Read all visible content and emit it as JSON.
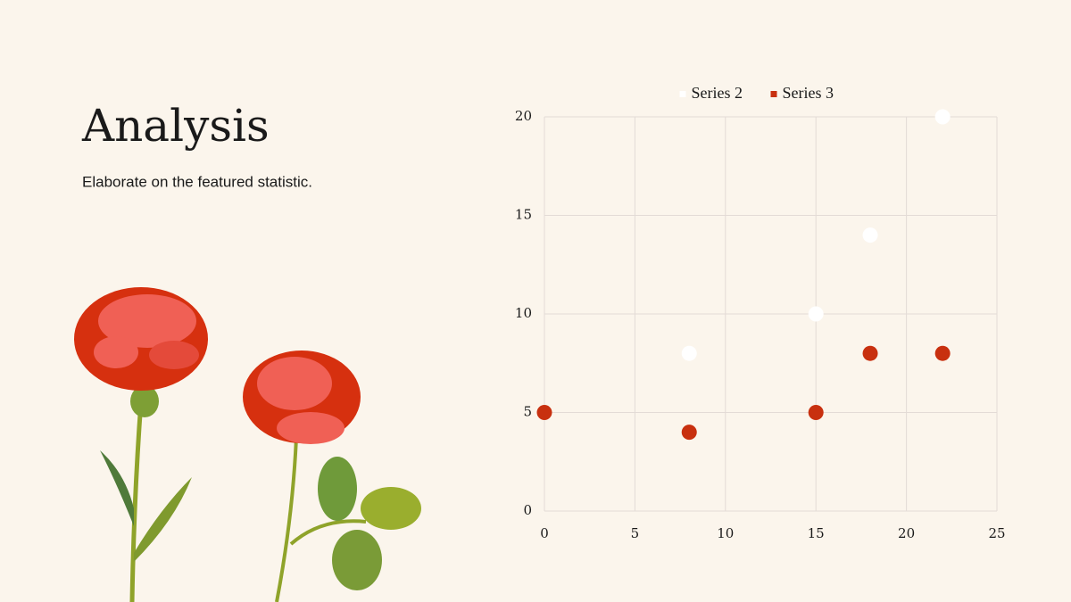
{
  "chart_data": {
    "type": "scatter",
    "title": "Analysis",
    "subtitle": "Elaborate on the featured statistic.",
    "series": [
      {
        "name": "Series 2",
        "color": "#ffffff",
        "x": [
          8,
          15,
          18,
          22
        ],
        "values": [
          8,
          10,
          14,
          20
        ]
      },
      {
        "name": "Series 3",
        "color": "#c8300f",
        "x": [
          0,
          8,
          15,
          18,
          22
        ],
        "values": [
          5,
          4,
          5,
          8,
          8
        ]
      }
    ],
    "xlim": [
      0,
      25
    ],
    "xticks": [
      0,
      5,
      10,
      15,
      20,
      25
    ],
    "ylim": [
      0,
      20
    ],
    "yticks": [
      0,
      5,
      10,
      15,
      20
    ],
    "grid": true,
    "legend": "top"
  }
}
